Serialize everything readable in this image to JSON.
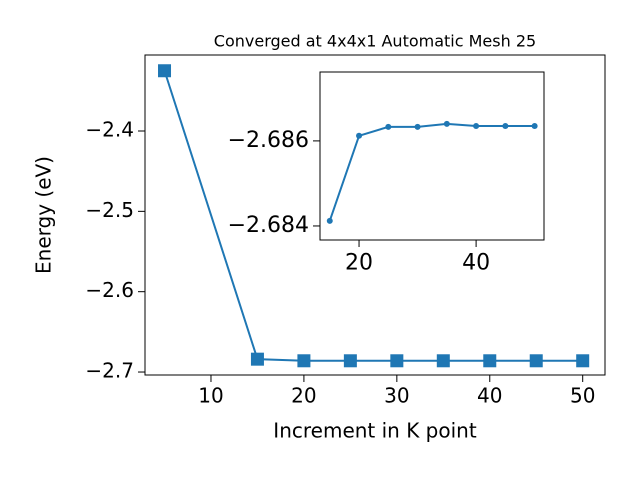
{
  "chart_data": [
    {
      "type": "line",
      "title": "Converged at 4x4x1 Automatic Mesh 25",
      "x_label": "Increment in K point",
      "y_label": "Energy (eV)",
      "marker": "square",
      "x": [
        5,
        15,
        20,
        25,
        30,
        35,
        40,
        45,
        50
      ],
      "series": [
        {
          "color": "#1f77b4",
          "values": [
            -2.325,
            -2.684,
            -2.686,
            -2.686,
            -2.686,
            -2.686,
            -2.686,
            -2.686,
            -2.686
          ]
        }
      ],
      "xlim": [
        2.9,
        52.4
      ],
      "xticks": [
        10,
        20,
        30,
        40,
        50
      ],
      "ylim": [
        -2.7037,
        -2.3054
      ],
      "yticks": [
        {
          "value": -2.7,
          "label": "−2.7"
        },
        {
          "value": -2.6,
          "label": "−2.6"
        },
        {
          "value": -2.5,
          "label": "−2.5"
        },
        {
          "value": -2.4,
          "label": "−2.4"
        }
      ]
    },
    {
      "type": "line",
      "marker": "circle",
      "x": [
        15,
        20,
        25,
        30,
        35,
        40,
        45,
        50
      ],
      "series": [
        {
          "color": "#1f77b4",
          "values": [
            -2.68412,
            -2.68612,
            -2.68633,
            -2.68633,
            -2.6864,
            -2.68635,
            -2.68635,
            -2.68635
          ]
        }
      ],
      "xlim": [
        13.33,
        51.6
      ],
      "xticks": [
        20,
        40
      ],
      "ylim": [
        -2.68367,
        -2.68762
      ],
      "yticks": [
        {
          "value": -2.684,
          "label": "−2.684"
        },
        {
          "value": -2.686,
          "label": "−2.686"
        }
      ]
    }
  ]
}
